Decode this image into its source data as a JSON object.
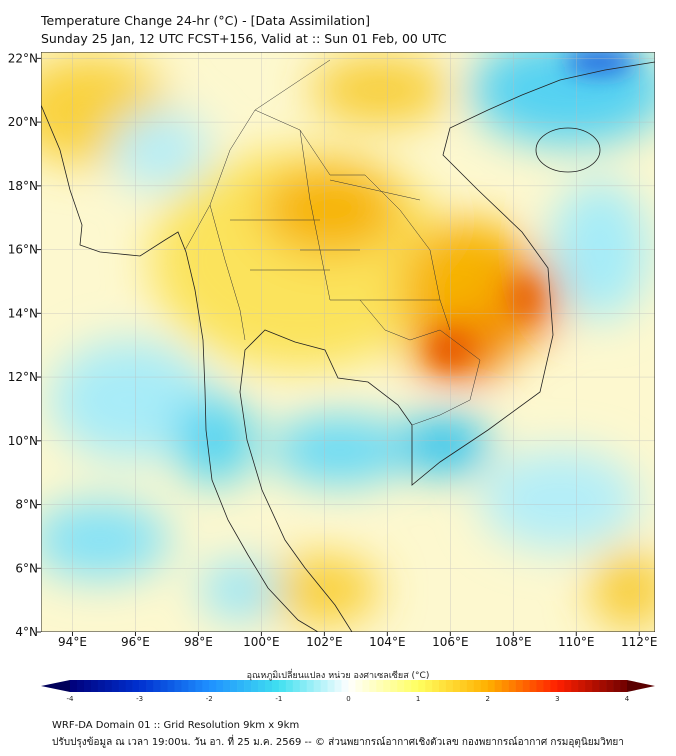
{
  "title": "Temperature Change 24-hr (°C) - [Data Assimilation]",
  "subtitle": "Sunday 25 Jan, 12 UTC FCST+156, Valid at :: Sun 01 Feb, 00 UTC",
  "map": {
    "lon_labels": [
      "94°E",
      "96°E",
      "98°E",
      "100°E",
      "102°E",
      "104°E",
      "106°E",
      "108°E",
      "110°E",
      "112°E"
    ],
    "lat_labels": [
      "22°N",
      "20°N",
      "18°N",
      "16°N",
      "14°N",
      "12°N",
      "10°N",
      "8°N",
      "6°N",
      "4°N"
    ],
    "lon_range": [
      93,
      112.5
    ],
    "lat_range": [
      4,
      22.2
    ]
  },
  "colorbar": {
    "label": "อุณหภูมิเปลี่ยนแปลง หน่วย องศาเซลเซียส (°C)",
    "ticks": [
      "-4",
      "-3",
      "-2",
      "-1",
      "0",
      "1",
      "2",
      "3",
      "4"
    ],
    "range": [
      -4,
      4
    ],
    "colors": [
      "#00007a",
      "#0030d0",
      "#1e90ff",
      "#40e0f0",
      "#ffffff",
      "#ffff60",
      "#ffb000",
      "#ff2000",
      "#700000"
    ]
  },
  "footer": {
    "line1": "WRF-DA Domain 01 :: Grid Resolution 9km x 9km",
    "line2": "ปรับปรุงข้อมูล ณ เวลา 19:00น. วัน อา. ที่ 25 ม.ค. 2569 -- © ส่วนพยากรณ์อากาศเชิงตัวเลข กองพยากรณ์อากาศ กรมอุตุนิยมวิทยา"
  }
}
